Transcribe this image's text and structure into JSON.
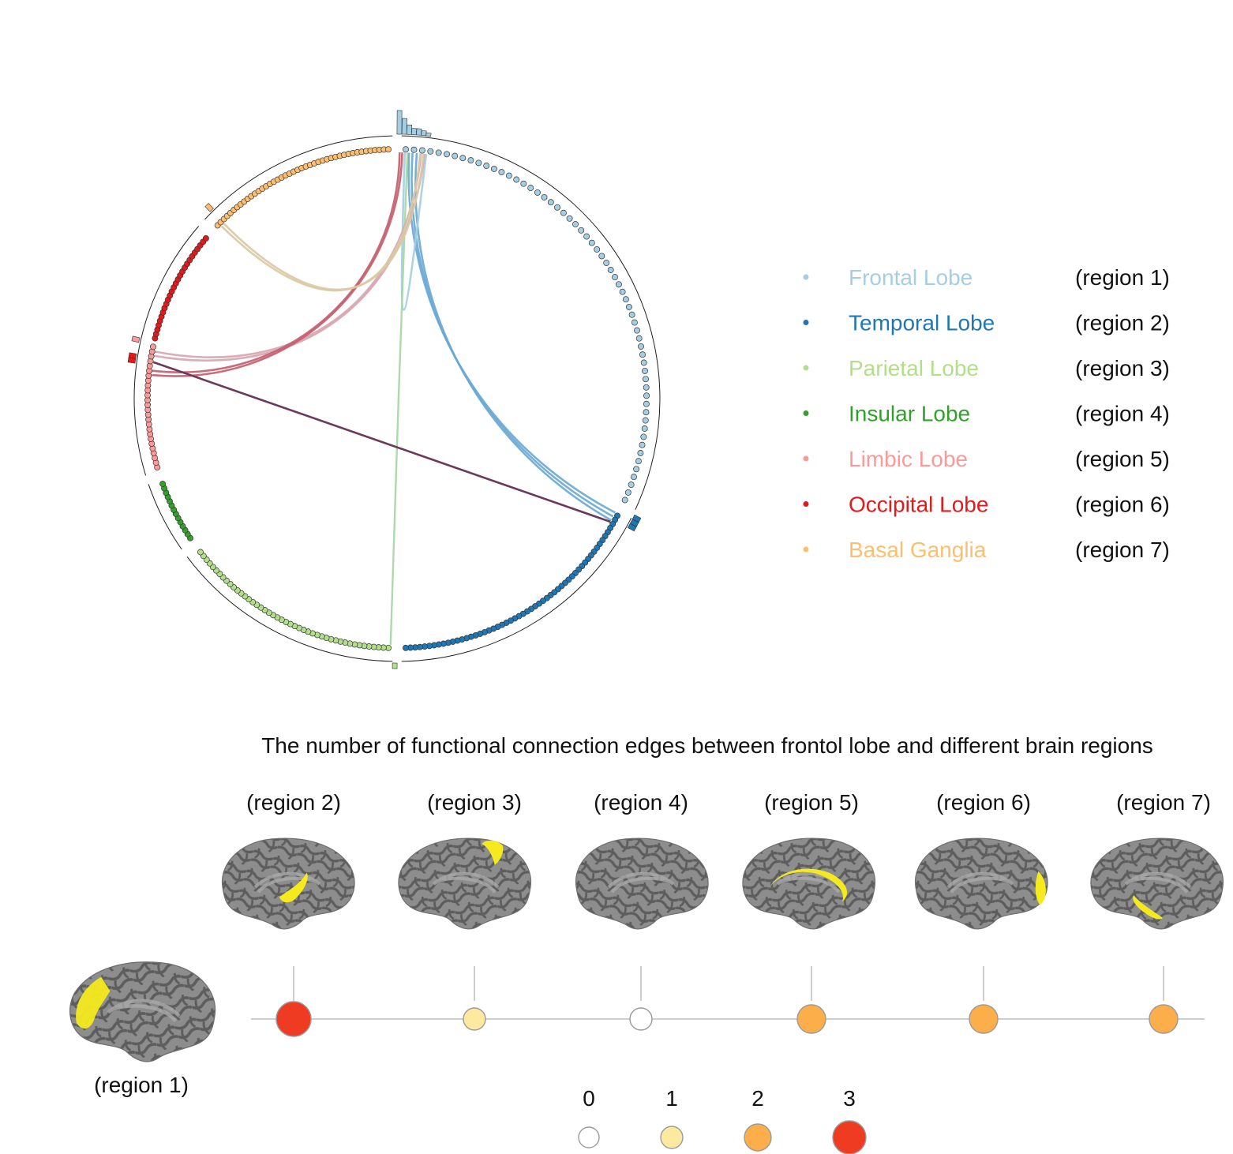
{
  "legend": [
    {
      "label": "Frontal Lobe",
      "region": "(region 1)",
      "color": "#a6cee3"
    },
    {
      "label": "Temporal Lobe",
      "region": "(region 2)",
      "color": "#1f78b4"
    },
    {
      "label": "Parietal Lobe",
      "region": "(region 3)",
      "color": "#b2df8a"
    },
    {
      "label": "Insular Lobe",
      "region": "(region 4)",
      "color": "#33a02c"
    },
    {
      "label": "Limbic Lobe",
      "region": "(region 5)",
      "color": "#fb9a99"
    },
    {
      "label": "Occipital Lobe",
      "region": "(region 6)",
      "color": "#e31a1c"
    },
    {
      "label": "Basal Ganglia",
      "region": "(region 7)",
      "color": "#fdbf6f"
    }
  ],
  "connections": [
    {
      "from": "Frontal Lobe",
      "to": "Temporal Lobe",
      "count": 3,
      "color": "#6aa9d4"
    },
    {
      "from": "Frontal Lobe",
      "to": "Parietal Lobe",
      "count": 1,
      "color": "#a7d6a4"
    },
    {
      "from": "Frontal Lobe",
      "to": "Limbic Lobe",
      "count": 2,
      "color": "#d8a6b0"
    },
    {
      "from": "Frontal Lobe",
      "to": "Occipital Lobe",
      "count": 2,
      "color": "#c4606e"
    },
    {
      "from": "Frontal Lobe",
      "to": "Basal Ganglia",
      "count": 2,
      "color": "#d9c9a4"
    },
    {
      "from": "Frontal Lobe",
      "to": "Frontal Lobe",
      "count": 1,
      "color": "#a6cee3"
    },
    {
      "from": "Occipital Lobe",
      "to": "Temporal Lobe",
      "count": 1,
      "color": "#6b3a5a"
    }
  ],
  "panel": {
    "title": "The number of functional connection edges between frontol lobe and different brain regions",
    "source_label": "(region 1)",
    "targets": [
      {
        "label": "(region 2)",
        "value": 3
      },
      {
        "label": "(region 3)",
        "value": 1
      },
      {
        "label": "(region 4)",
        "value": 0
      },
      {
        "label": "(region 5)",
        "value": 2
      },
      {
        "label": "(region 6)",
        "value": 2
      },
      {
        "label": "(region 7)",
        "value": 2
      }
    ],
    "scale": [
      {
        "value": "0",
        "color": "#ffffff"
      },
      {
        "value": "1",
        "color": "#fde9a0"
      },
      {
        "value": "2",
        "color": "#fcae4a"
      },
      {
        "value": "3",
        "color": "#ef3b22"
      }
    ]
  }
}
